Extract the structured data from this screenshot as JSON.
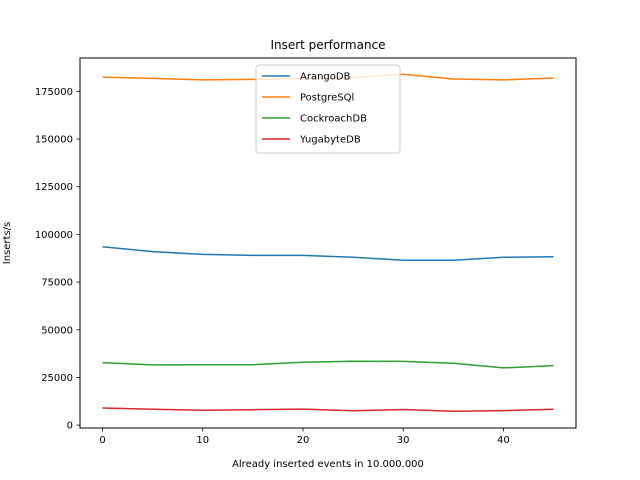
{
  "chart_data": {
    "type": "line",
    "title": "Insert performance",
    "xlabel": "Already inserted events in 10.000.000",
    "ylabel": "Inserts/s",
    "xlim": [
      -2.25,
      47.25
    ],
    "ylim": [
      -1500,
      192500
    ],
    "xticks": [
      0,
      10,
      20,
      30,
      40
    ],
    "yticks": [
      0,
      25000,
      50000,
      75000,
      100000,
      125000,
      150000,
      175000
    ],
    "grid": false,
    "legend": "top-center",
    "x": [
      0,
      5,
      10,
      15,
      20,
      25,
      30,
      35,
      40,
      45
    ],
    "series": [
      {
        "name": "ArangoDB",
        "color": "#1f77b4",
        "values": [
          93500,
          91000,
          89500,
          89000,
          89000,
          88000,
          86500,
          86500,
          88000,
          88300
        ]
      },
      {
        "name": "PostgreSQl",
        "color": "#ff7f0e",
        "values": [
          182500,
          181800,
          181000,
          181300,
          181800,
          182300,
          184000,
          181500,
          181000,
          182000
        ]
      },
      {
        "name": "CockroachDB",
        "color": "#2ca02c",
        "values": [
          32800,
          31600,
          31700,
          31700,
          33000,
          33500,
          33400,
          32500,
          30000,
          31200
        ]
      },
      {
        "name": "YugabyteDB",
        "color": "#d62728",
        "values": [
          9000,
          8300,
          7800,
          8100,
          8400,
          7500,
          8200,
          7300,
          7600,
          8300
        ]
      }
    ]
  }
}
